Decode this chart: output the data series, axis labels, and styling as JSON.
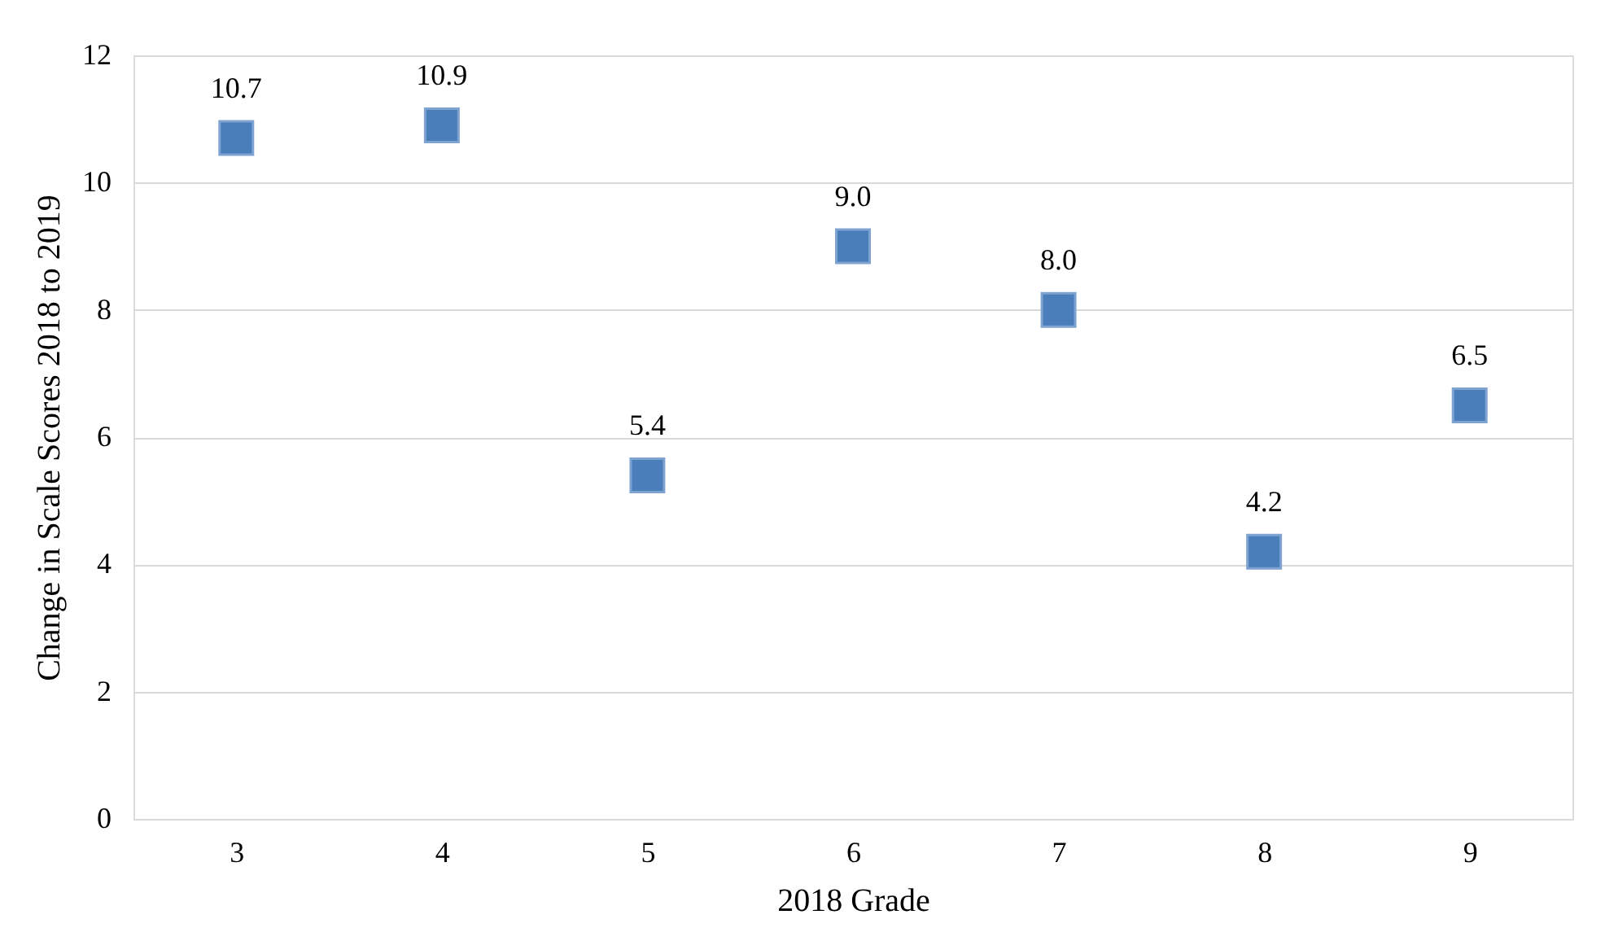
{
  "chart_data": {
    "type": "scatter",
    "xlabel": "2018 Grade",
    "ylabel": "Change in Scale Scores 2018 to 2019",
    "categories": [
      "3",
      "4",
      "5",
      "6",
      "7",
      "8",
      "9"
    ],
    "values": [
      10.7,
      10.9,
      5.4,
      9.0,
      8.0,
      4.2,
      6.5
    ],
    "value_labels": [
      "10.7",
      "10.9",
      "5.4",
      "9.0",
      "8.0",
      "4.2",
      "6.5"
    ],
    "color": "#4a7ebb",
    "marker": "square",
    "ylim": [
      0,
      12
    ],
    "yticks": [
      0,
      2,
      4,
      6,
      8,
      10,
      12
    ],
    "grid": "y"
  }
}
